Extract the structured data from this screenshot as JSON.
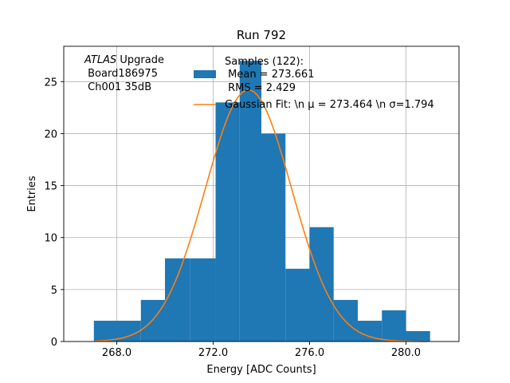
{
  "chart_data": {
    "type": "bar",
    "title": "Run 792",
    "xlabel": "Energy [ADC Counts]",
    "ylabel": "Entries",
    "xlim": [
      265.8,
      282.2
    ],
    "ylim": [
      0,
      28.4
    ],
    "x_ticks": [
      268.0,
      272.0,
      276.0,
      280.0
    ],
    "x_tick_labels": [
      "268.0",
      "272.0",
      "276.0",
      "280.0"
    ],
    "y_ticks": [
      0,
      5,
      10,
      15,
      20,
      25
    ],
    "y_tick_labels": [
      "0",
      "5",
      "10",
      "15",
      "20",
      "25"
    ],
    "grid": true,
    "histogram": {
      "bin_edges": [
        267.05,
        268.0,
        269.0,
        270.0,
        271.05,
        272.1,
        273.1,
        274.0,
        275.0,
        276.0,
        277.0,
        278.0,
        279.0,
        280.0,
        281.0
      ],
      "counts": [
        2,
        2,
        4,
        8,
        8,
        23,
        27,
        20,
        7,
        11,
        4,
        2,
        3,
        1
      ],
      "color": "#1f77b4"
    },
    "gaussian_fit": {
      "mu": 273.464,
      "sigma": 1.794,
      "peak": 24.2,
      "x_range": [
        267.1,
        280.9
      ],
      "color": "#ff7f0e"
    },
    "legend": [
      {
        "label_lines": [
          "Samples (122):",
          " Mean = 273.661",
          " RMS = 2.429"
        ],
        "color": "#1f77b4",
        "marker": "patch"
      },
      {
        "label_lines": [
          "Gaussian Fit: \\n μ = 273.464 \\n σ=1.794"
        ],
        "color": "#ff7f0e",
        "marker": "line"
      }
    ],
    "legend_position": "upper-center",
    "annotation": {
      "lines": [
        "ATLAS Upgrade",
        " Board186975",
        " Ch001 35dB"
      ],
      "italic_word": "ATLAS"
    }
  }
}
